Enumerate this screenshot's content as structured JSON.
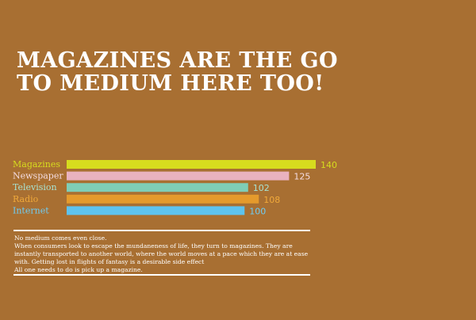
{
  "title": {
    "line1": "MAGAZINES ARE THE GO",
    "line2": "TO MEDIUM HERE TOO!"
  },
  "chart_data": {
    "type": "bar",
    "orientation": "horizontal",
    "categories": [
      "Magazines",
      "Newspaper",
      "Television",
      "Radio",
      "Internet"
    ],
    "values": [
      140,
      125,
      102,
      108,
      100
    ],
    "colors": [
      "#d7dc1e",
      "#e9b2bf",
      "#7fcdb7",
      "#e59a2c",
      "#5ec3ee"
    ],
    "label_colors": [
      "#d7dc1e",
      "#f4dce1",
      "#a8e2d1",
      "#f0a93a",
      "#6fcdf4"
    ],
    "value_label_colors": [
      "#d7dc1e",
      "#f4dce1",
      "#a8e2d1",
      "#f0a93a",
      "#6fcdf4"
    ]
  },
  "note": {
    "line1": "No medium comes even close.",
    "line2": "When consumers look to escape the mundaneness of life, they turn to magazines. They are instantly transported to another world, where the world moves at a pace which they are at ease with. Getting lost in flights of fantasy is a desirable side effect",
    "line3": "All one needs to do is pick up a magazine."
  }
}
